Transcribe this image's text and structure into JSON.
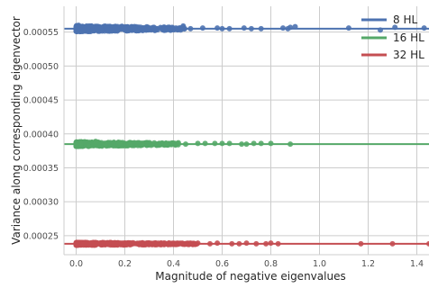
{
  "chart_data": {
    "type": "scatter",
    "title": "",
    "xlabel": "Magnitude of negative eigenvalues",
    "ylabel": "Variance along corresponding eigenvector",
    "xlim": [
      -0.05,
      1.45
    ],
    "ylim": [
      0.000222,
      0.000588
    ],
    "xticks": [
      0.0,
      0.2,
      0.4,
      0.6,
      0.8,
      1.0,
      1.2,
      1.4
    ],
    "xtick_labels": [
      "0.0",
      "0.2",
      "0.4",
      "0.6",
      "0.8",
      "1.0",
      "1.2",
      "1.4"
    ],
    "yticks": [
      0.00025,
      0.0003,
      0.00035,
      0.0004,
      0.00045,
      0.0005,
      0.00055
    ],
    "ytick_labels": [
      "0.00025",
      "0.00030",
      "0.00035",
      "0.00040",
      "0.00045",
      "0.00050",
      "0.00055"
    ],
    "grid": true,
    "legend_position": "top-right",
    "series": [
      {
        "name": "8 HL",
        "color": "#4c72b0",
        "fit_line": 0.000555,
        "spread": 4.5e-06,
        "dense_x_max": 0.45,
        "points": [
          [
            0.0,
            0.000557
          ],
          [
            0.005,
            0.000553
          ],
          [
            0.01,
            0.00056
          ],
          [
            0.02,
            0.000551
          ],
          [
            0.03,
            0.000556
          ],
          [
            0.05,
            0.000558
          ],
          [
            0.07,
            0.000552
          ],
          [
            0.1,
            0.000557
          ],
          [
            0.13,
            0.000554
          ],
          [
            0.16,
            0.000556
          ],
          [
            0.2,
            0.000553
          ],
          [
            0.24,
            0.000556
          ],
          [
            0.28,
            0.000554
          ],
          [
            0.32,
            0.000557
          ],
          [
            0.36,
            0.000554
          ],
          [
            0.41,
            0.000556
          ],
          [
            0.44,
            0.000559
          ],
          [
            0.47,
            0.000555
          ],
          [
            0.52,
            0.000556
          ],
          [
            0.58,
            0.000556
          ],
          [
            0.6,
            0.000555
          ],
          [
            0.63,
            0.000555
          ],
          [
            0.69,
            0.000556
          ],
          [
            0.72,
            0.000555
          ],
          [
            0.76,
            0.000555
          ],
          [
            0.85,
            0.000556
          ],
          [
            0.87,
            0.000555
          ],
          [
            0.88,
            0.000557
          ],
          [
            0.9,
            0.000558
          ],
          [
            1.12,
            0.000556
          ],
          [
            1.25,
            0.000553
          ],
          [
            1.31,
            0.000557
          ],
          [
            1.43,
            0.000556
          ]
        ]
      },
      {
        "name": "16 HL",
        "color": "#55a868",
        "fit_line": 0.000385,
        "spread": 3.5e-06,
        "dense_x_max": 0.42,
        "points": [
          [
            0.0,
            0.000384
          ],
          [
            0.02,
            0.000386
          ],
          [
            0.05,
            0.000382
          ],
          [
            0.08,
            0.000389
          ],
          [
            0.12,
            0.000385
          ],
          [
            0.18,
            0.000387
          ],
          [
            0.22,
            0.000384
          ],
          [
            0.27,
            0.000386
          ],
          [
            0.31,
            0.000385
          ],
          [
            0.37,
            0.000386
          ],
          [
            0.42,
            0.000387
          ],
          [
            0.45,
            0.000385
          ],
          [
            0.5,
            0.000386
          ],
          [
            0.53,
            0.000386
          ],
          [
            0.57,
            0.000386
          ],
          [
            0.6,
            0.000386
          ],
          [
            0.63,
            0.000386
          ],
          [
            0.68,
            0.000385
          ],
          [
            0.7,
            0.000385
          ],
          [
            0.73,
            0.000386
          ],
          [
            0.76,
            0.000386
          ],
          [
            0.8,
            0.000386
          ],
          [
            0.88,
            0.000385
          ]
        ]
      },
      {
        "name": "32 HL",
        "color": "#c44e52",
        "fit_line": 0.000238,
        "spread": 2.2e-06,
        "dense_x_max": 0.5,
        "points": [
          [
            0.0,
            0.000239
          ],
          [
            0.03,
            0.000237
          ],
          [
            0.07,
            0.00024
          ],
          [
            0.11,
            0.000238
          ],
          [
            0.16,
            0.000239
          ],
          [
            0.21,
            0.000237
          ],
          [
            0.26,
            0.000238
          ],
          [
            0.31,
            0.000238
          ],
          [
            0.36,
            0.000239
          ],
          [
            0.41,
            0.000238
          ],
          [
            0.46,
            0.000238
          ],
          [
            0.5,
            0.000239
          ],
          [
            0.55,
            0.000238
          ],
          [
            0.58,
            0.000239
          ],
          [
            0.64,
            0.000238
          ],
          [
            0.67,
            0.000238
          ],
          [
            0.7,
            0.000239
          ],
          [
            0.74,
            0.000238
          ],
          [
            0.78,
            0.000238
          ],
          [
            0.8,
            0.000239
          ],
          [
            0.83,
            0.000238
          ],
          [
            1.17,
            0.000238
          ],
          [
            1.3,
            0.000238
          ],
          [
            1.45,
            0.000238
          ]
        ]
      }
    ]
  }
}
